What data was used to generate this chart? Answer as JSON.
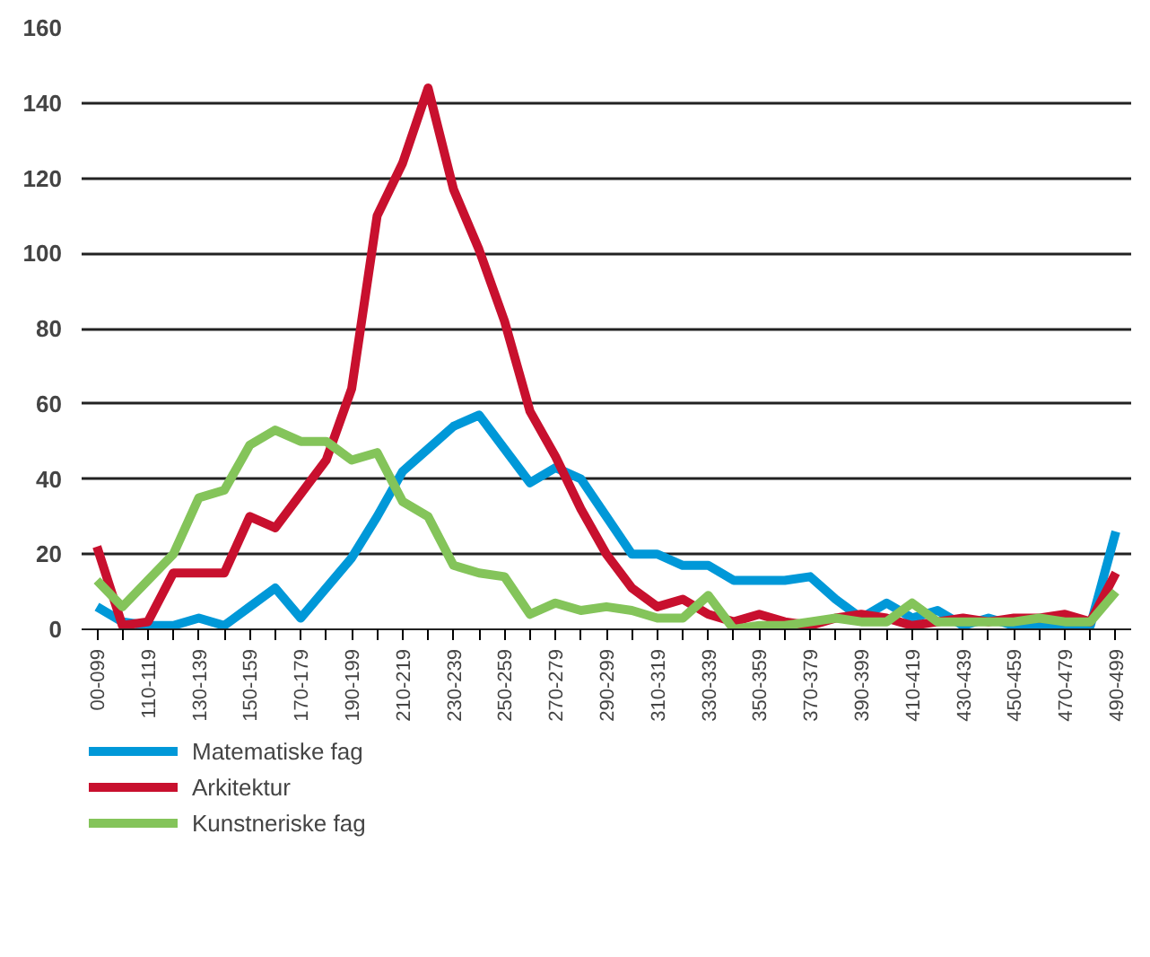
{
  "chart_data": {
    "type": "line",
    "categories": [
      "00-099",
      null,
      "110-119",
      null,
      "130-139",
      null,
      "150-159",
      null,
      "170-179",
      null,
      "190-199",
      null,
      "210-219",
      null,
      "230-239",
      null,
      "250-259",
      null,
      "270-279",
      null,
      "290-299",
      null,
      "310-319",
      null,
      "330-339",
      null,
      "350-359",
      null,
      "370-379",
      null,
      "390-399",
      null,
      "410-419",
      null,
      "430-439",
      null,
      "450-459",
      null,
      "470-479",
      null,
      "490-499"
    ],
    "ylim": [
      0,
      160
    ],
    "yticks": [
      0,
      20,
      40,
      60,
      80,
      100,
      120,
      140,
      160
    ],
    "grid": "y",
    "legend": "bottom",
    "line_style": "solid",
    "marker": "none",
    "series": [
      {
        "name": "Matematiske fag",
        "color": "#0098d8",
        "values": [
          6,
          2,
          1,
          1,
          3,
          1,
          6,
          11,
          3,
          11,
          19,
          30,
          42,
          48,
          54,
          57,
          48,
          39,
          43,
          40,
          30,
          20,
          20,
          17,
          17,
          13,
          13,
          13,
          14,
          8,
          3,
          7,
          3,
          5,
          1,
          3,
          1,
          1,
          1,
          1,
          26
        ]
      },
      {
        "name": "Arkitektur",
        "color": "#c8102e",
        "values": [
          22,
          1,
          2,
          15,
          15,
          15,
          30,
          27,
          36,
          45,
          64,
          110,
          124,
          144,
          117,
          101,
          82,
          58,
          46,
          32,
          20,
          11,
          6,
          8,
          4,
          2,
          4,
          2,
          1,
          3,
          4,
          3,
          1,
          2,
          3,
          2,
          3,
          3,
          4,
          2,
          15
        ]
      },
      {
        "name": "Kunstneriske fag",
        "color": "#84c45a",
        "values": [
          13,
          6,
          13,
          20,
          35,
          37,
          49,
          53,
          50,
          50,
          45,
          47,
          34,
          30,
          17,
          15,
          14,
          4,
          7,
          5,
          6,
          5,
          3,
          3,
          9,
          0,
          1,
          1,
          2,
          3,
          2,
          2,
          7,
          2,
          2,
          2,
          2,
          3,
          2,
          2,
          10
        ]
      }
    ]
  }
}
